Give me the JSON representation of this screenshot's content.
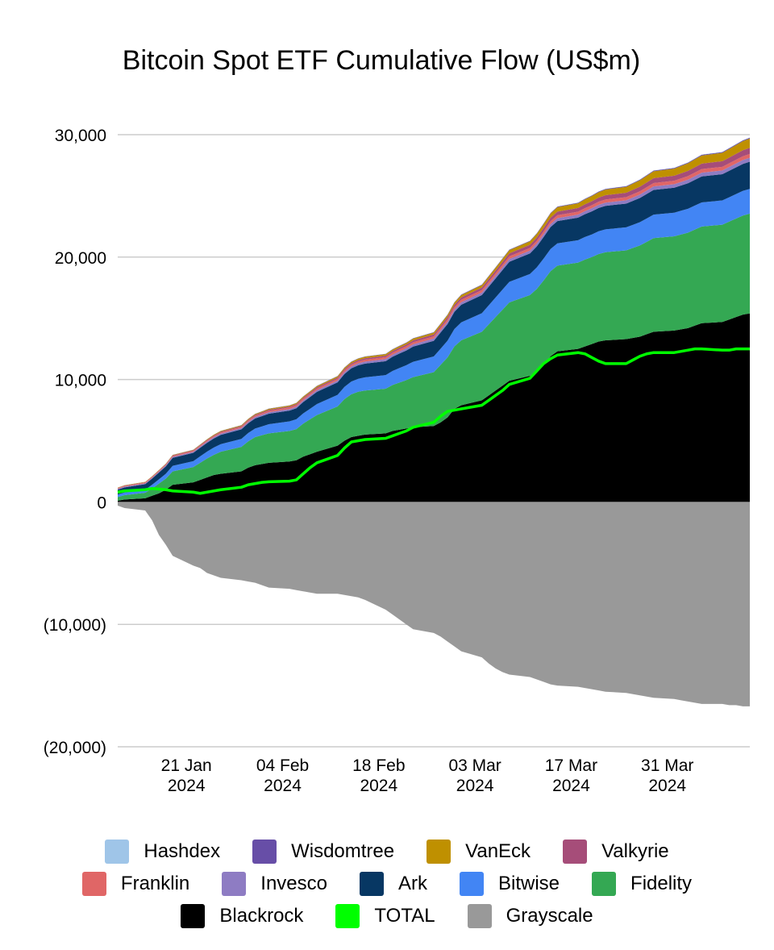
{
  "chart_data": {
    "type": "area",
    "title": "Bitcoin Spot ETF Cumulative Flow (US$m)",
    "xlabel": "",
    "ylabel": "",
    "ylim": [
      -20000,
      30000
    ],
    "yticks": [
      {
        "value": 30000,
        "label": "30,000"
      },
      {
        "value": 20000,
        "label": "20,000"
      },
      {
        "value": 10000,
        "label": "10,000"
      },
      {
        "value": 0,
        "label": "0"
      },
      {
        "value": -10000,
        "label": "(10,000)"
      },
      {
        "value": -20000,
        "label": "(20,000)"
      }
    ],
    "xlim": [
      "2024-01-11",
      "2024-04-12"
    ],
    "xticks": [
      {
        "date": "2024-01-21",
        "line1": "21 Jan",
        "line2": "2024"
      },
      {
        "date": "2024-02-04",
        "line1": "04 Feb",
        "line2": "2024"
      },
      {
        "date": "2024-02-18",
        "line1": "18 Feb",
        "line2": "2024"
      },
      {
        "date": "2024-03-03",
        "line1": "03 Mar",
        "line2": "2024"
      },
      {
        "date": "2024-03-17",
        "line1": "17 Mar",
        "line2": "2024"
      },
      {
        "date": "2024-03-31",
        "line1": "31 Mar",
        "line2": "2024"
      }
    ],
    "grid": true,
    "legend_position": "bottom",
    "x": [
      "2024-01-11",
      "2024-01-12",
      "2024-01-15",
      "2024-01-16",
      "2024-01-17",
      "2024-01-18",
      "2024-01-19",
      "2024-01-22",
      "2024-01-23",
      "2024-01-24",
      "2024-01-25",
      "2024-01-26",
      "2024-01-29",
      "2024-01-30",
      "2024-01-31",
      "2024-02-01",
      "2024-02-02",
      "2024-02-05",
      "2024-02-06",
      "2024-02-07",
      "2024-02-08",
      "2024-02-09",
      "2024-02-12",
      "2024-02-13",
      "2024-02-14",
      "2024-02-15",
      "2024-02-16",
      "2024-02-19",
      "2024-02-20",
      "2024-02-21",
      "2024-02-22",
      "2024-02-23",
      "2024-02-26",
      "2024-02-27",
      "2024-02-28",
      "2024-02-29",
      "2024-03-01",
      "2024-03-04",
      "2024-03-05",
      "2024-03-06",
      "2024-03-07",
      "2024-03-08",
      "2024-03-11",
      "2024-03-12",
      "2024-03-13",
      "2024-03-14",
      "2024-03-15",
      "2024-03-18",
      "2024-03-19",
      "2024-03-20",
      "2024-03-21",
      "2024-03-22",
      "2024-03-25",
      "2024-03-26",
      "2024-03-27",
      "2024-03-28",
      "2024-03-29",
      "2024-04-01",
      "2024-04-02",
      "2024-04-03",
      "2024-04-04",
      "2024-04-05",
      "2024-04-08",
      "2024-04-09",
      "2024-04-10",
      "2024-04-11",
      "2024-04-12"
    ],
    "series": [
      {
        "name": "Blackrock",
        "color": "#000000",
        "kind": "stack-positive",
        "values": [
          100,
          200,
          300,
          500,
          700,
          1000,
          1400,
          1600,
          1800,
          2000,
          2200,
          2300,
          2500,
          2800,
          3000,
          3100,
          3200,
          3300,
          3400,
          3700,
          3900,
          4100,
          4600,
          5000,
          5300,
          5400,
          5500,
          5600,
          5800,
          5900,
          6000,
          6100,
          6200,
          6500,
          6900,
          7600,
          7900,
          8300,
          8700,
          9100,
          9500,
          9900,
          10300,
          10600,
          11200,
          11900,
          12300,
          12500,
          12700,
          12900,
          13100,
          13200,
          13300,
          13400,
          13500,
          13700,
          13900,
          14000,
          14100,
          14200,
          14400,
          14600,
          14700,
          14900,
          15100,
          15300,
          15400
        ]
      },
      {
        "name": "Fidelity",
        "color": "#34a853",
        "kind": "stack-positive",
        "values": [
          300,
          350,
          450,
          600,
          800,
          900,
          1100,
          1250,
          1400,
          1550,
          1650,
          1800,
          2000,
          2150,
          2300,
          2350,
          2400,
          2500,
          2550,
          2700,
          2850,
          3000,
          3200,
          3400,
          3500,
          3600,
          3600,
          3650,
          3750,
          3850,
          3950,
          4100,
          4400,
          4700,
          4900,
          5100,
          5300,
          5600,
          5800,
          6000,
          6200,
          6400,
          6600,
          6800,
          6900,
          6950,
          7000,
          7050,
          7100,
          7100,
          7150,
          7200,
          7250,
          7350,
          7450,
          7550,
          7650,
          7700,
          7750,
          7800,
          7850,
          7900,
          7950,
          8000,
          8050,
          8100,
          8150
        ]
      },
      {
        "name": "Bitwise",
        "color": "#4285f4",
        "kind": "stack-positive",
        "values": [
          200,
          220,
          250,
          300,
          350,
          400,
          450,
          480,
          520,
          560,
          600,
          620,
          650,
          680,
          700,
          720,
          750,
          780,
          800,
          830,
          860,
          900,
          950,
          1000,
          1030,
          1060,
          1080,
          1110,
          1150,
          1190,
          1220,
          1250,
          1280,
          1320,
          1370,
          1420,
          1470,
          1520,
          1560,
          1600,
          1640,
          1680,
          1720,
          1760,
          1790,
          1810,
          1820,
          1830,
          1840,
          1850,
          1860,
          1870,
          1880,
          1890,
          1900,
          1910,
          1920,
          1930,
          1940,
          1950,
          1960,
          1970,
          1980,
          1990,
          2000,
          2010,
          2020
        ]
      },
      {
        "name": "Ark",
        "color": "#073763",
        "kind": "stack-positive",
        "values": [
          400,
          420,
          450,
          500,
          550,
          600,
          650,
          680,
          700,
          720,
          740,
          760,
          780,
          800,
          820,
          840,
          860,
          880,
          900,
          930,
          960,
          990,
          1020,
          1050,
          1080,
          1100,
          1120,
          1140,
          1160,
          1180,
          1200,
          1240,
          1280,
          1320,
          1360,
          1400,
          1440,
          1480,
          1520,
          1560,
          1600,
          1640,
          1680,
          1720,
          1760,
          1800,
          1820,
          1840,
          1860,
          1880,
          1900,
          1920,
          1940,
          1960,
          1980,
          2000,
          2020,
          2040,
          2060,
          2080,
          2100,
          2120,
          2140,
          2160,
          2180,
          2200,
          2220
        ]
      },
      {
        "name": "Invesco",
        "color": "#8e7cc3",
        "kind": "stack-positive",
        "values": [
          60,
          62,
          65,
          70,
          75,
          80,
          85,
          88,
          92,
          96,
          100,
          104,
          108,
          112,
          116,
          120,
          124,
          128,
          132,
          136,
          140,
          144,
          148,
          152,
          156,
          160,
          164,
          168,
          172,
          176,
          180,
          184,
          188,
          192,
          196,
          200,
          204,
          208,
          212,
          216,
          220,
          224,
          228,
          232,
          236,
          240,
          244,
          248,
          252,
          256,
          260,
          264,
          268,
          272,
          276,
          280,
          284,
          288,
          292,
          296,
          300,
          304,
          308,
          312,
          316,
          320,
          324
        ]
      },
      {
        "name": "Franklin",
        "color": "#e06666",
        "kind": "stack-positive",
        "values": [
          60,
          62,
          64,
          66,
          68,
          70,
          74,
          78,
          82,
          86,
          90,
          94,
          98,
          102,
          106,
          110,
          114,
          118,
          122,
          126,
          130,
          134,
          138,
          142,
          146,
          150,
          154,
          158,
          162,
          166,
          170,
          174,
          178,
          182,
          186,
          190,
          194,
          198,
          202,
          206,
          210,
          214,
          218,
          222,
          226,
          230,
          234,
          238,
          242,
          246,
          250,
          254,
          258,
          262,
          266,
          270,
          274,
          278,
          282,
          286,
          290,
          294,
          298,
          302,
          306,
          310,
          314
        ]
      },
      {
        "name": "Valkyrie",
        "color": "#a64d79",
        "kind": "stack-positive",
        "values": [
          30,
          32,
          34,
          36,
          38,
          40,
          44,
          48,
          52,
          56,
          60,
          64,
          68,
          72,
          76,
          80,
          84,
          88,
          92,
          96,
          100,
          104,
          108,
          112,
          116,
          120,
          124,
          128,
          132,
          136,
          140,
          150,
          160,
          170,
          180,
          190,
          200,
          210,
          220,
          230,
          240,
          250,
          260,
          270,
          280,
          290,
          300,
          310,
          320,
          330,
          340,
          350,
          360,
          370,
          380,
          390,
          400,
          410,
          420,
          430,
          440,
          450,
          460,
          470,
          480,
          490,
          500
        ]
      },
      {
        "name": "VanEck",
        "color": "#bf9000",
        "kind": "stack-positive",
        "values": [
          20,
          22,
          24,
          26,
          28,
          30,
          34,
          38,
          42,
          46,
          50,
          54,
          58,
          62,
          66,
          70,
          74,
          78,
          82,
          86,
          90,
          94,
          98,
          102,
          106,
          110,
          114,
          118,
          122,
          126,
          130,
          140,
          150,
          160,
          170,
          180,
          190,
          200,
          210,
          220,
          240,
          260,
          280,
          300,
          320,
          340,
          360,
          380,
          400,
          420,
          440,
          460,
          480,
          500,
          520,
          540,
          560,
          580,
          600,
          620,
          640,
          660,
          680,
          700,
          720,
          740,
          760
        ]
      },
      {
        "name": "Wisdomtree",
        "color": "#674ea7",
        "kind": "stack-positive",
        "values": [
          2,
          3,
          4,
          5,
          6,
          7,
          8,
          9,
          10,
          11,
          12,
          13,
          14,
          15,
          16,
          17,
          18,
          19,
          20,
          21,
          22,
          23,
          24,
          25,
          26,
          27,
          28,
          29,
          30,
          31,
          32,
          33,
          34,
          35,
          36,
          37,
          38,
          39,
          40,
          41,
          42,
          43,
          44,
          45,
          46,
          47,
          48,
          49,
          50,
          51,
          52,
          53,
          54,
          55,
          56,
          57,
          58,
          59,
          60,
          61,
          62,
          63,
          64,
          65,
          66,
          67,
          68
        ]
      },
      {
        "name": "Hashdex",
        "color": "#9fc5e8",
        "kind": "stack-positive",
        "values": [
          2,
          2,
          2,
          3,
          3,
          3,
          3,
          3,
          4,
          4,
          4,
          4,
          4,
          5,
          5,
          5,
          5,
          5,
          6,
          6,
          6,
          6,
          6,
          7,
          7,
          7,
          7,
          7,
          8,
          8,
          8,
          8,
          8,
          9,
          9,
          9,
          9,
          9,
          10,
          10,
          10,
          10,
          10,
          11,
          11,
          11,
          11,
          11,
          12,
          12,
          12,
          12,
          12,
          13,
          13,
          13,
          13,
          13,
          14,
          14,
          14,
          14,
          14,
          15,
          15,
          15,
          15
        ]
      },
      {
        "name": "Grayscale",
        "color": "#999999",
        "kind": "negative",
        "values": [
          -300,
          -500,
          -700,
          -1500,
          -2700,
          -3500,
          -4400,
          -5200,
          -5400,
          -5800,
          -6000,
          -6200,
          -6400,
          -6500,
          -6600,
          -6800,
          -7000,
          -7100,
          -7200,
          -7300,
          -7400,
          -7500,
          -7500,
          -7600,
          -7700,
          -7800,
          -8000,
          -8800,
          -9200,
          -9600,
          -10000,
          -10400,
          -10700,
          -11000,
          -11400,
          -11800,
          -12200,
          -12700,
          -13200,
          -13600,
          -13900,
          -14100,
          -14300,
          -14500,
          -14700,
          -14900,
          -15000,
          -15100,
          -15200,
          -15300,
          -15400,
          -15500,
          -15600,
          -15700,
          -15800,
          -15900,
          -16000,
          -16100,
          -16200,
          -16300,
          -16400,
          -16500,
          -16500,
          -16600,
          -16600,
          -16700,
          -16700
        ]
      },
      {
        "name": "TOTAL",
        "color": "#00ff00",
        "kind": "line",
        "values": [
          800,
          900,
          1000,
          1100,
          1050,
          1000,
          900,
          800,
          700,
          800,
          900,
          1000,
          1200,
          1400,
          1500,
          1600,
          1650,
          1700,
          1800,
          2300,
          2800,
          3200,
          3800,
          4400,
          4900,
          5000,
          5100,
          5200,
          5400,
          5600,
          5800,
          6100,
          6500,
          7000,
          7400,
          7500,
          7600,
          7900,
          8300,
          8700,
          9100,
          9600,
          10100,
          10700,
          11300,
          11700,
          12000,
          12200,
          12100,
          11800,
          11500,
          11300,
          11300,
          11600,
          11900,
          12100,
          12200,
          12200,
          12300,
          12400,
          12500,
          12500,
          12400,
          12400,
          12500,
          12500,
          12500
        ]
      }
    ]
  },
  "legend": {
    "rows": [
      [
        {
          "label": "Hashdex",
          "color": "#9fc5e8"
        },
        {
          "label": "Wisdomtree",
          "color": "#674ea7"
        },
        {
          "label": "VanEck",
          "color": "#bf9000"
        },
        {
          "label": "Valkyrie",
          "color": "#a64d79"
        }
      ],
      [
        {
          "label": "Franklin",
          "color": "#e06666"
        },
        {
          "label": "Invesco",
          "color": "#8e7cc3"
        },
        {
          "label": "Ark",
          "color": "#073763"
        },
        {
          "label": "Bitwise",
          "color": "#4285f4"
        },
        {
          "label": "Fidelity",
          "color": "#34a853"
        }
      ],
      [
        {
          "label": "Blackrock",
          "color": "#000000"
        },
        {
          "label": "TOTAL",
          "color": "#00ff00"
        },
        {
          "label": "Grayscale",
          "color": "#999999"
        }
      ]
    ]
  }
}
